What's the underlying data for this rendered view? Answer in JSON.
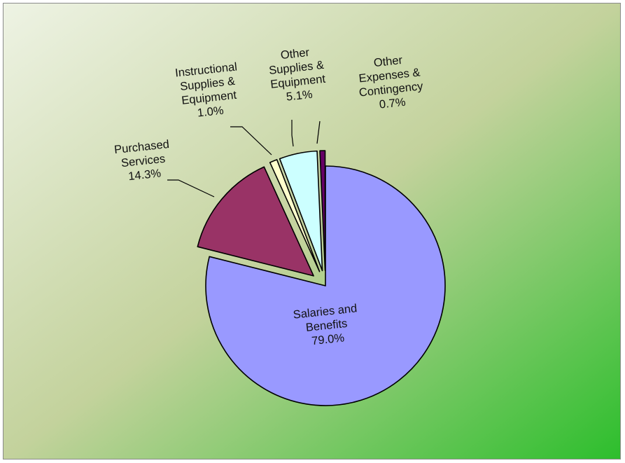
{
  "chart_data": {
    "type": "pie",
    "title": "",
    "slices": [
      {
        "label": "Salaries and Benefits",
        "lines": [
          "Salaries and",
          "Benefits",
          "79.0%"
        ],
        "value": 79.0,
        "color": "#9999FF",
        "exploded": false
      },
      {
        "label": "Purchased Services",
        "lines": [
          "Purchased",
          "Services",
          "14.3%"
        ],
        "value": 14.3,
        "color": "#993366",
        "exploded": true
      },
      {
        "label": "Instructional Supplies & Equipment",
        "lines": [
          "Instructional",
          "Supplies &",
          "Equipment",
          "1.0%"
        ],
        "value": 1.0,
        "color": "#FFFFCC",
        "exploded": true
      },
      {
        "label": "Other Supplies & Equipment",
        "lines": [
          "Other",
          "Supplies &",
          "Equipment",
          "5.1%"
        ],
        "value": 5.1,
        "color": "#CCFFFF",
        "exploded": true
      },
      {
        "label": "Other Expenses & Contingency",
        "lines": [
          "Other",
          "Expenses &",
          "Contingency",
          "0.7%"
        ],
        "value": 0.7,
        "color": "#660066",
        "exploded": true
      }
    ],
    "background": {
      "from": "#EEF3E4",
      "mid": "#C3D29C",
      "to": "#2CBE2C"
    },
    "legend": "none"
  }
}
